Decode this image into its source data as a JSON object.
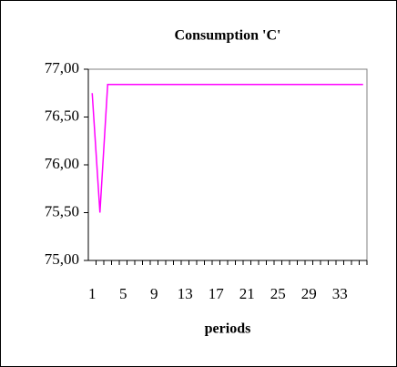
{
  "chart_data": {
    "type": "line",
    "title": "Consumption 'C'",
    "x_label": "periods",
    "categories": [
      1,
      null,
      null,
      null,
      5,
      null,
      null,
      null,
      9,
      null,
      null,
      null,
      13,
      null,
      null,
      null,
      17,
      null,
      null,
      null,
      21,
      null,
      null,
      null,
      25,
      null,
      null,
      null,
      29,
      null,
      null,
      null,
      33,
      null,
      null,
      null
    ],
    "series": [
      {
        "name": "Consumption 'C'",
        "color": "#ff00ff",
        "values": [
          76.75,
          75.5,
          76.84,
          76.84,
          76.84,
          76.84,
          76.84,
          76.84,
          76.84,
          76.84,
          76.84,
          76.84,
          76.84,
          76.84,
          76.84,
          76.84,
          76.84,
          76.84,
          76.84,
          76.84,
          76.84,
          76.84,
          76.84,
          76.84,
          76.84,
          76.84,
          76.84,
          76.84,
          76.84,
          76.84,
          76.84,
          76.84,
          76.84,
          76.84,
          76.84,
          76.84
        ]
      }
    ],
    "ylim": [
      75,
      77
    ],
    "yticks": [
      {
        "value": 75,
        "label": "75,00"
      },
      {
        "value": 75.5,
        "label": "75,50"
      },
      {
        "value": 76,
        "label": "76,00"
      },
      {
        "value": 76.5,
        "label": "76,50"
      },
      {
        "value": 77,
        "label": "77,00"
      }
    ],
    "grid": false
  }
}
